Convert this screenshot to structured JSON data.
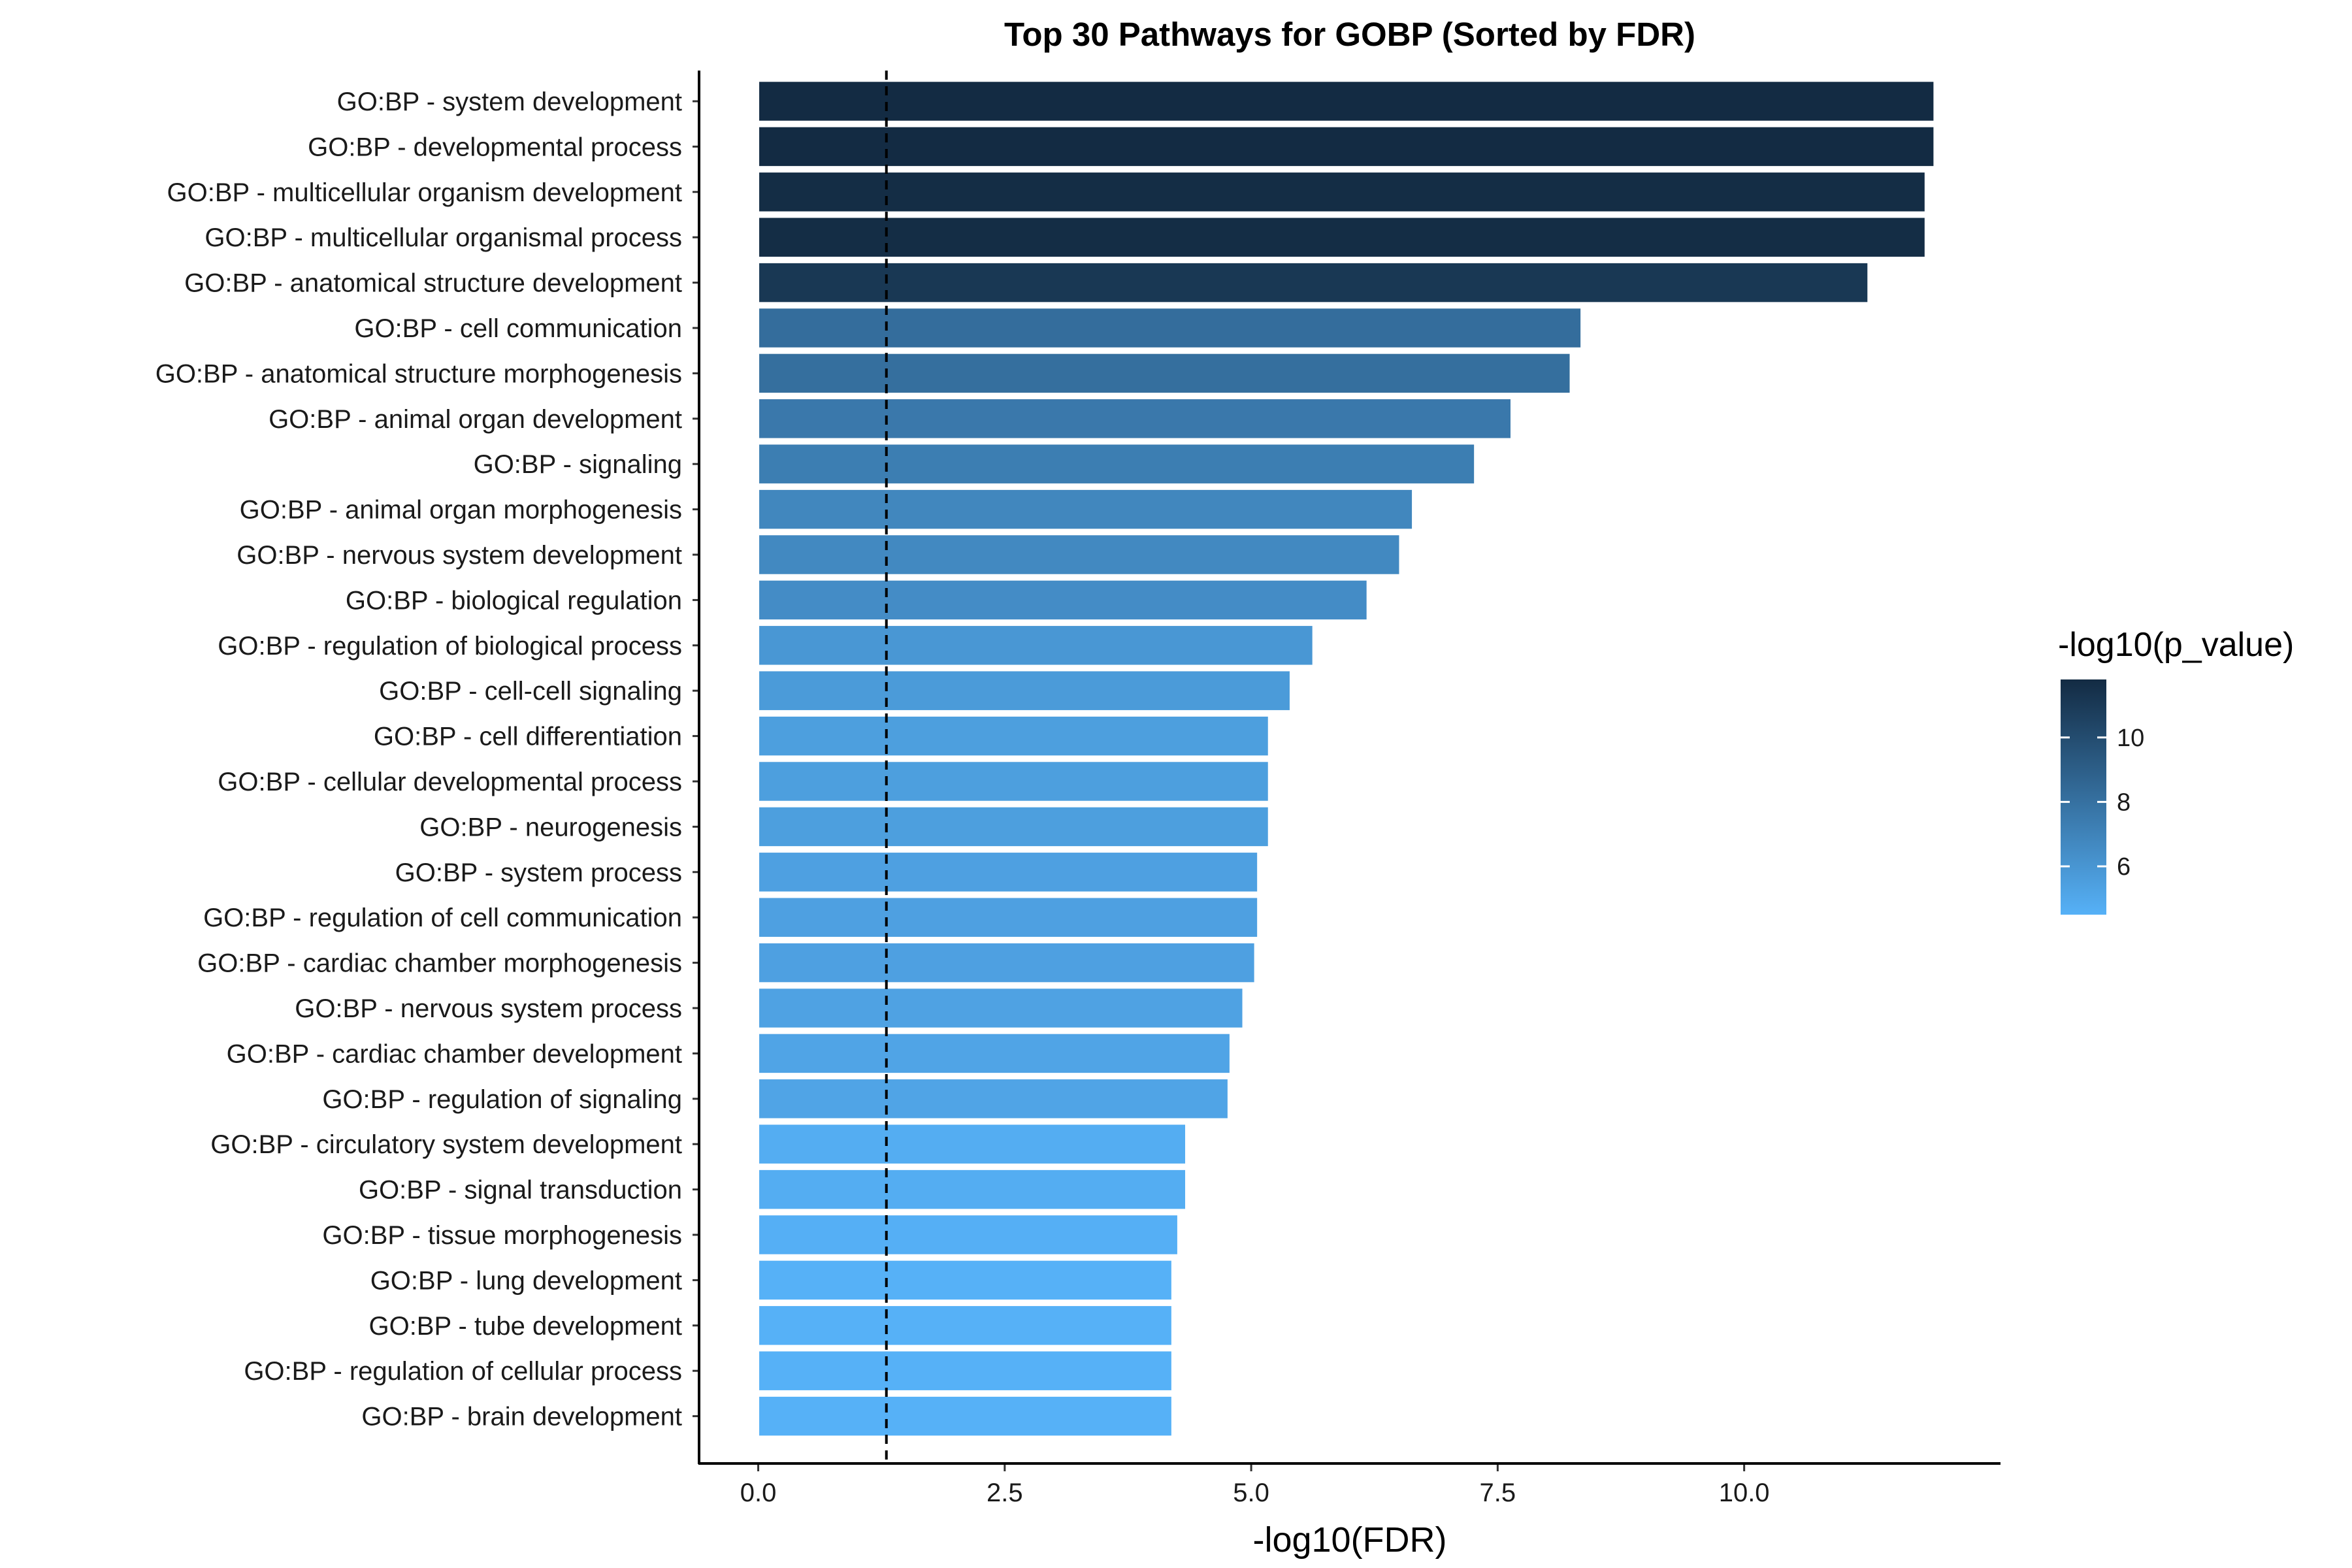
{
  "chart_data": {
    "type": "bar",
    "orientation": "horizontal",
    "title": "Top 30 Pathways for GOBP (Sorted by FDR)",
    "xlabel": "-log10(FDR)",
    "ylabel": "",
    "xlim": [
      -0.6,
      12.6
    ],
    "xticks": [
      0,
      2.5,
      5,
      7.5,
      10
    ],
    "xtick_labels": [
      "0.0",
      "2.5",
      "5.0",
      "7.5",
      "10.0"
    ],
    "threshold_line": 1.3,
    "categories": [
      "GO:BP - system development",
      "GO:BP - developmental process",
      "GO:BP - multicellular organism development",
      "GO:BP - multicellular organismal process",
      "GO:BP - anatomical structure development",
      "GO:BP - cell communication",
      "GO:BP - anatomical structure morphogenesis",
      "GO:BP - animal organ development",
      "GO:BP - signaling",
      "GO:BP - animal organ morphogenesis",
      "GO:BP - nervous system development",
      "GO:BP - biological regulation",
      "GO:BP - regulation of biological process",
      "GO:BP - cell-cell signaling",
      "GO:BP - cell differentiation",
      "GO:BP - cellular developmental process",
      "GO:BP - neurogenesis",
      "GO:BP - system process",
      "GO:BP - regulation of cell communication",
      "GO:BP - cardiac chamber morphogenesis",
      "GO:BP - nervous system process",
      "GO:BP - cardiac chamber development",
      "GO:BP - regulation of signaling",
      "GO:BP - circulatory system development",
      "GO:BP - signal transduction",
      "GO:BP - tissue morphogenesis",
      "GO:BP - lung development",
      "GO:BP - tube development",
      "GO:BP - regulation of cellular process",
      "GO:BP - brain development"
    ],
    "values": [
      11.93,
      11.93,
      11.84,
      11.84,
      11.26,
      8.35,
      8.24,
      7.64,
      7.27,
      6.64,
      6.51,
      6.18,
      5.63,
      5.4,
      5.18,
      5.18,
      5.18,
      5.07,
      5.07,
      5.04,
      4.92,
      4.79,
      4.77,
      4.34,
      4.34,
      4.26,
      4.2,
      4.2,
      4.2,
      4.2
    ],
    "color_values": [
      11.8,
      11.8,
      11.7,
      11.7,
      11.1,
      8.2,
      8.1,
      7.6,
      7.3,
      6.8,
      6.7,
      6.5,
      5.9,
      5.7,
      5.5,
      5.5,
      5.5,
      5.4,
      5.4,
      5.4,
      5.3,
      5.2,
      5.2,
      4.7,
      4.7,
      4.6,
      4.5,
      4.5,
      4.5,
      4.5
    ],
    "legend": {
      "title": "-log10(p_value)",
      "range": [
        4.5,
        11.8
      ],
      "ticks": [
        6,
        8,
        10
      ],
      "tick_labels": [
        "6",
        "8",
        "10"
      ],
      "low_color": "#56B1F7",
      "high_color": "#132B43",
      "placement": "right"
    },
    "bar_outline_color": "#ffffff",
    "threshold_line_color": "#000000"
  }
}
